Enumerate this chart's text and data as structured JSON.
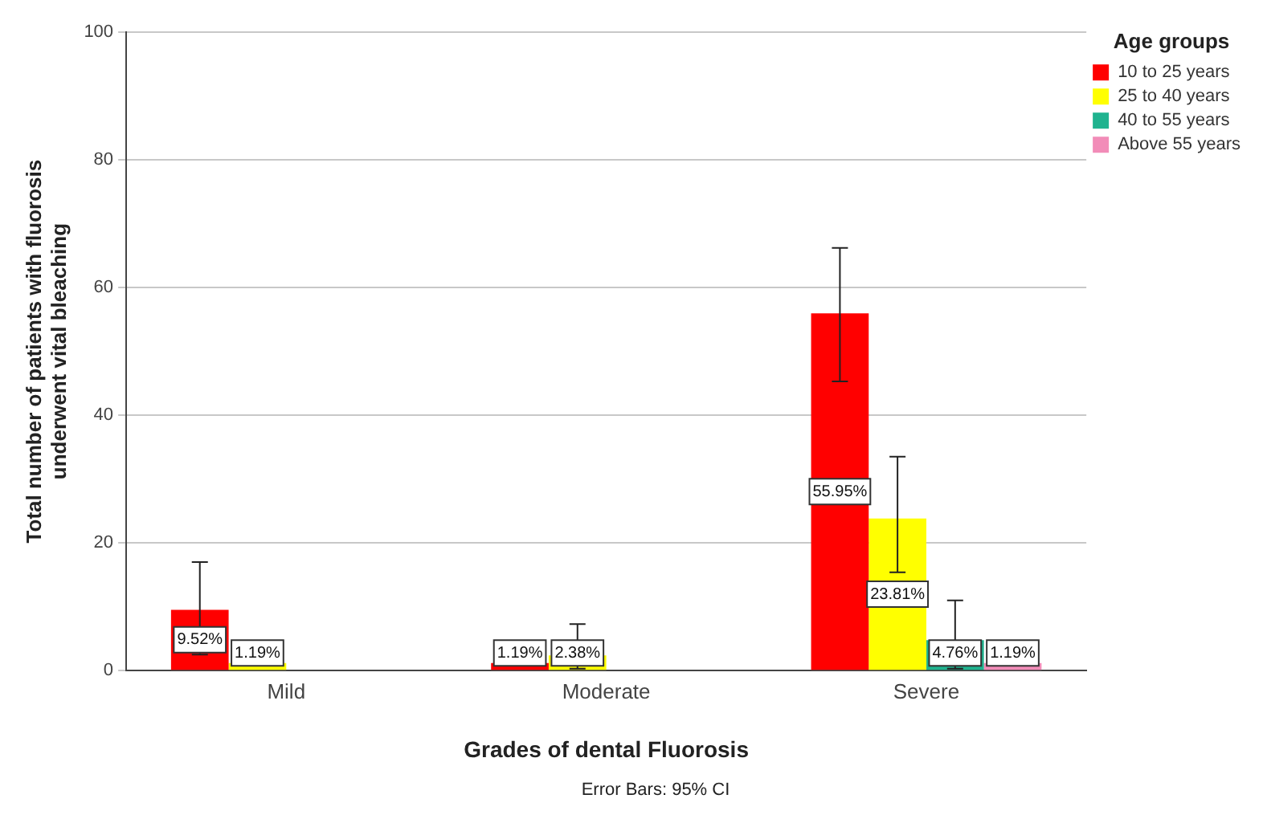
{
  "chart_data": {
    "type": "bar",
    "xlabel": "Grades of dental Fluorosis",
    "ylabel": "Total number of patients with fluorosis underwent vital bleaching",
    "legend_title": "Age groups",
    "legend": "top right",
    "categories": [
      "Mild",
      "Moderate",
      "Severe"
    ],
    "series": [
      {
        "name": "10 to 25 years",
        "color": "#ff0000",
        "values": [
          9.52,
          1.19,
          55.95
        ],
        "value_labels": [
          "9.52%",
          "1.19%",
          "55.95%"
        ],
        "errors": [
          [
            2.5,
            17
          ],
          null,
          [
            45.3,
            66.2
          ]
        ]
      },
      {
        "name": "25 to 40 years",
        "color": "#ffff00",
        "values": [
          1.19,
          2.38,
          23.81
        ],
        "value_labels": [
          "1.19%",
          "2.38%",
          "23.81%"
        ],
        "errors": [
          null,
          [
            0.3,
            7.3
          ],
          [
            15.4,
            33.5
          ]
        ]
      },
      {
        "name": "40 to 55 years",
        "color": "#1fb38f",
        "values": [
          null,
          null,
          4.76
        ],
        "value_labels": [
          null,
          null,
          "4.76%"
        ],
        "errors": [
          null,
          null,
          [
            0.3,
            11
          ]
        ]
      },
      {
        "name": "Above 55 years",
        "color": "#f28cb8",
        "values": [
          null,
          null,
          1.19
        ],
        "value_labels": [
          null,
          null,
          "1.19%"
        ]
      }
    ],
    "ylim": [
      0,
      100
    ],
    "yticks": [
      0,
      20,
      40,
      60,
      80,
      100
    ],
    "grid": "y",
    "annotations": [
      "Error Bars: 95% CI"
    ]
  }
}
